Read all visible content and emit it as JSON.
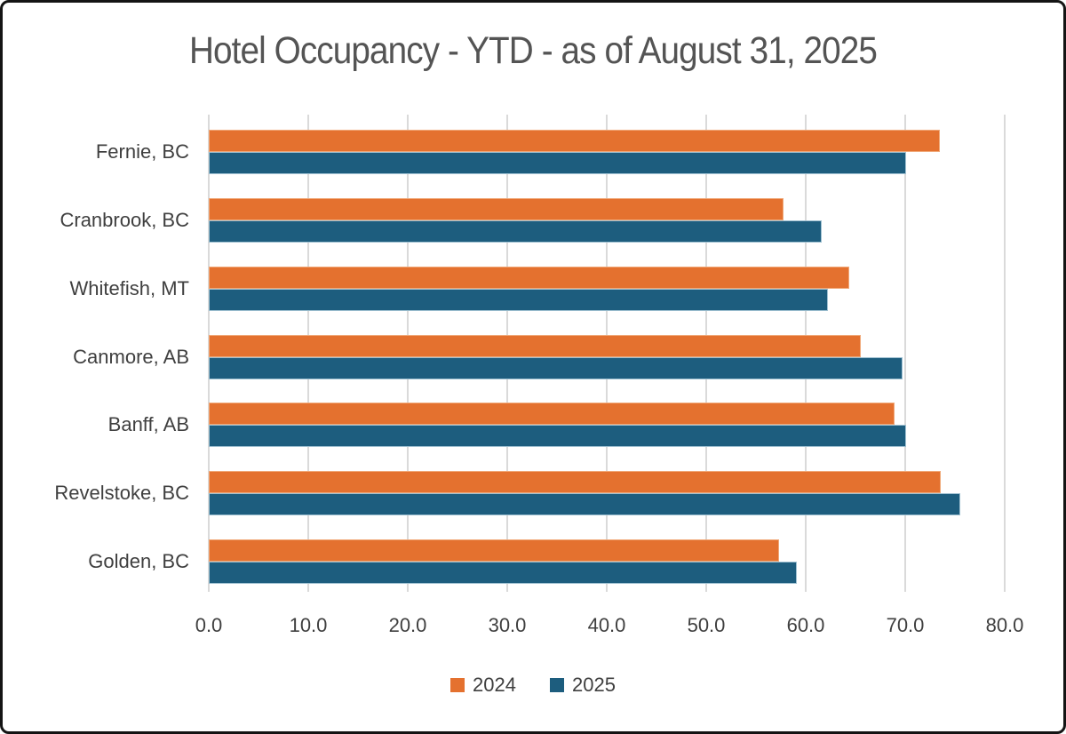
{
  "title": "Hotel Occupancy - YTD - as of August 31, 2025",
  "colors": {
    "series_2024": "#E4712F",
    "series_2025": "#1D5D7E",
    "gridline": "#DADADA",
    "title_text": "#545454",
    "axis_text": "#3F3F3F",
    "frame_border": "#141414",
    "background": "#FFFFFF"
  },
  "chart_data": {
    "type": "bar",
    "orientation": "horizontal",
    "title": "Hotel Occupancy - YTD - as of August 31, 2025",
    "categories": [
      "Fernie, BC",
      "Cranbrook, BC",
      "Whitefish, MT",
      "Canmore, AB",
      "Banff, AB",
      "Revelstoke, BC",
      "Golden, BC"
    ],
    "series": [
      {
        "name": "2024",
        "color": "#E4712F",
        "values": [
          73.5,
          57.8,
          64.4,
          65.5,
          68.9,
          73.6,
          57.3
        ]
      },
      {
        "name": "2025",
        "color": "#1D5D7E",
        "values": [
          70.1,
          61.6,
          62.2,
          69.7,
          70.1,
          75.5,
          59.1
        ]
      }
    ],
    "xlim": [
      0,
      80
    ],
    "x_ticks": [
      0,
      10,
      20,
      30,
      40,
      50,
      60,
      70,
      80
    ],
    "x_tick_labels": [
      "0.0",
      "10.0",
      "20.0",
      "30.0",
      "40.0",
      "50.0",
      "60.0",
      "70.0",
      "80.0"
    ],
    "grid": "vertical-gridlines",
    "legend_position": "bottom-center"
  }
}
